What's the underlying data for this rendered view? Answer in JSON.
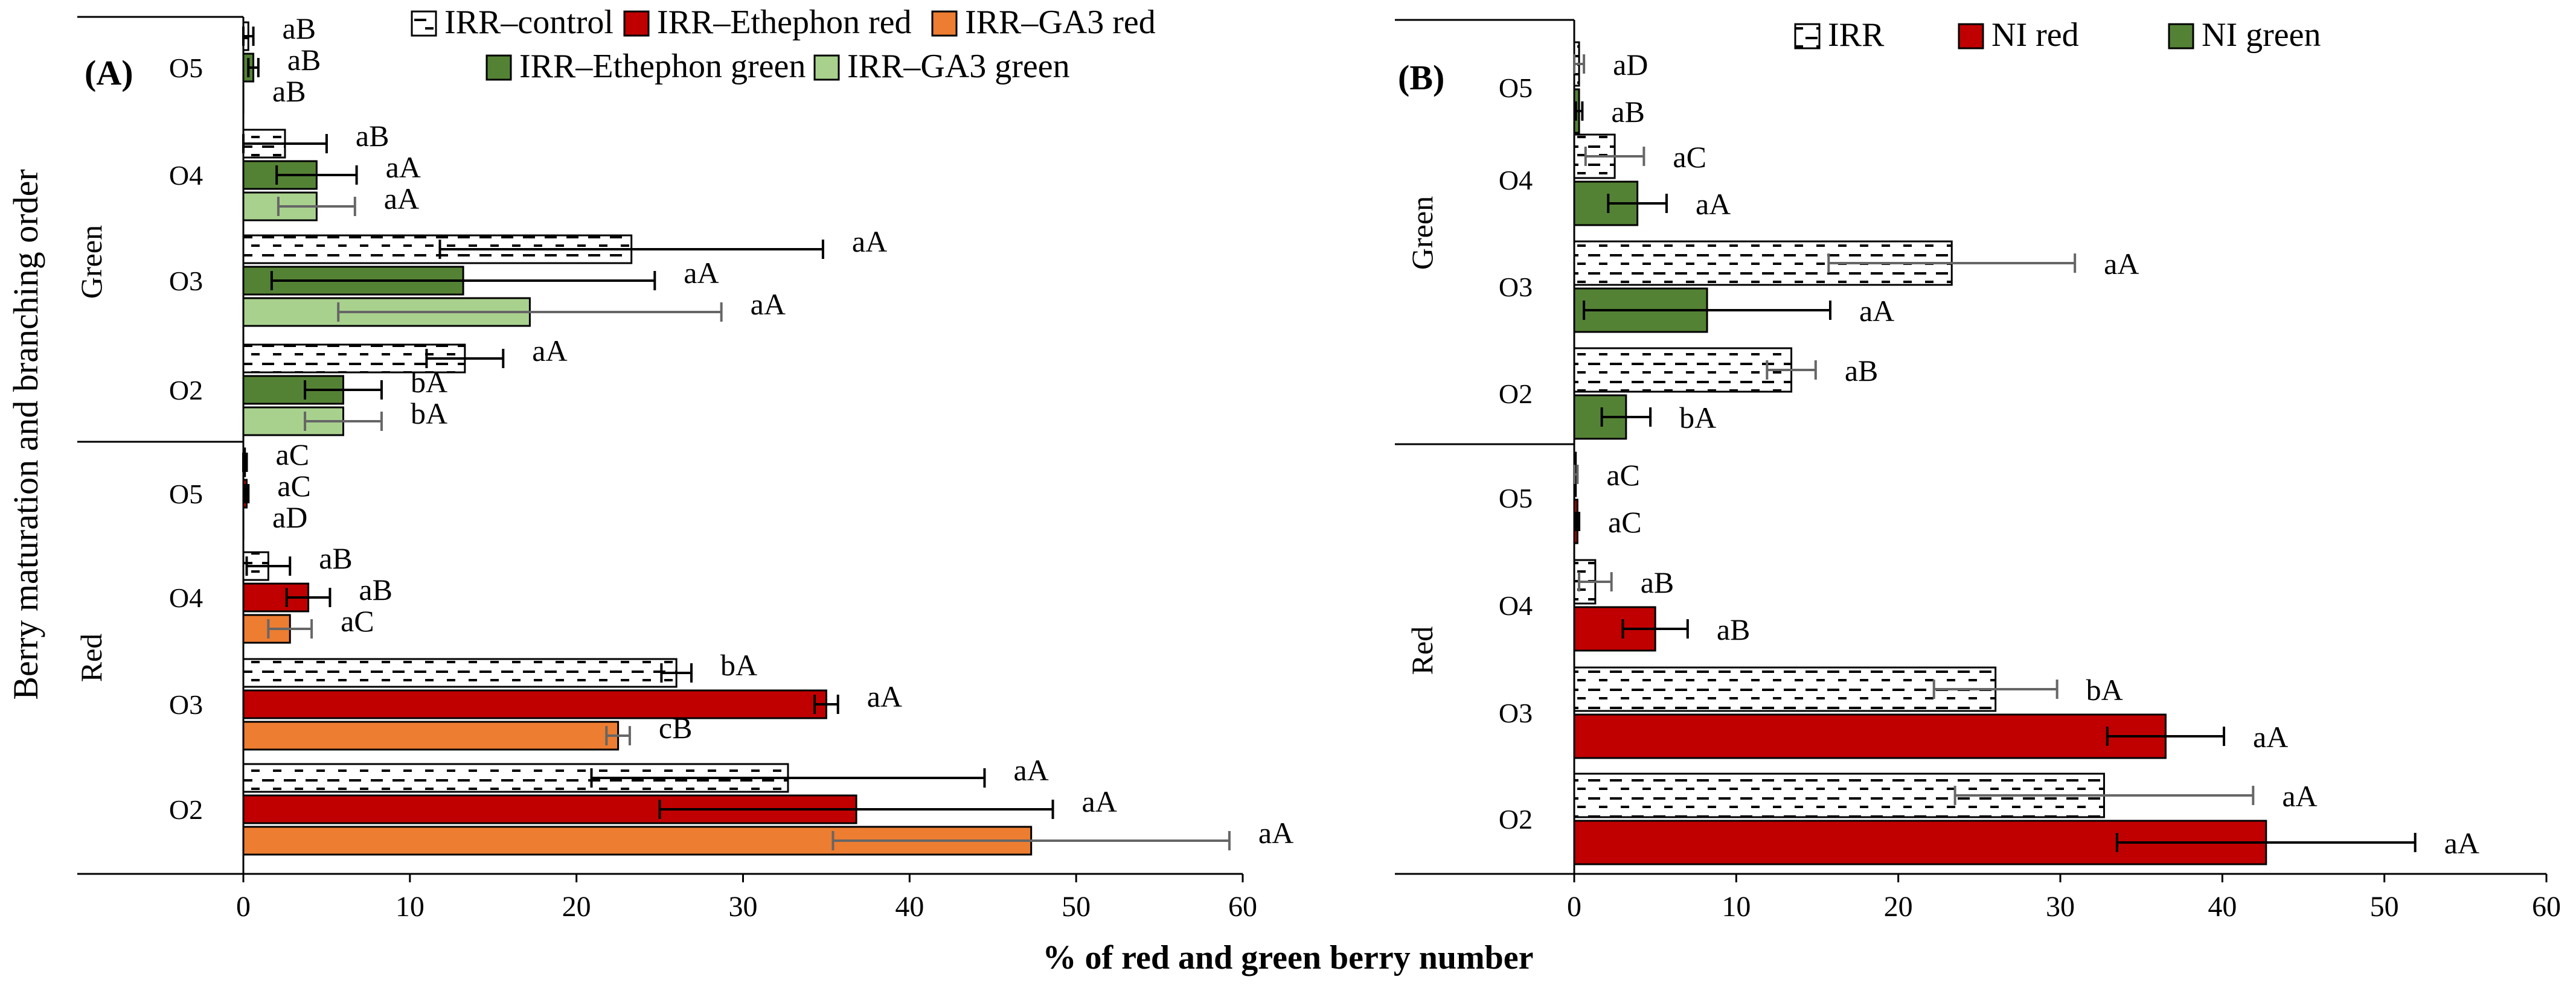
{
  "figure": {
    "ylabel": "Berry maturation and branching order",
    "xlabel": "% of red and green  berry number"
  },
  "colors": {
    "irr_fill": "#ffffff",
    "red": "#c00000",
    "orange": "#ed7d31",
    "dark_green": "#548235",
    "light_green": "#a9d18e",
    "black": "#000000",
    "error_grey": "#666666"
  },
  "chart_data": [
    {
      "type": "bar",
      "orientation": "horizontal",
      "panel_label": "(A)",
      "xlim": [
        0,
        60
      ],
      "xticks": [
        0,
        10,
        20,
        30,
        40,
        50,
        60
      ],
      "groups": [
        {
          "name": "Green",
          "orders": [
            "O5",
            "O4",
            "O3",
            "O2"
          ]
        },
        {
          "name": "Red",
          "orders": [
            "O5",
            "O4",
            "O3",
            "O2"
          ]
        }
      ],
      "series": [
        {
          "name": "IRR–control",
          "legend": "IRR–control",
          "style": "hatched",
          "color": "#ffffff",
          "group": "Green",
          "values": {
            "O5": 0.3,
            "O4": 2.5,
            "O3": 23.3,
            "O2": 13.3
          },
          "errors": {
            "O5": 0.3,
            "O4": 2.5,
            "O3": 11.5,
            "O2": 2.3
          },
          "letters": {
            "O5": "aB",
            "O4": "aB",
            "O3": "aA",
            "O2": "aA"
          }
        },
        {
          "name": "IRR–Ethephon green",
          "legend": "IRR–Ethephon green",
          "style": "solid",
          "color": "#548235",
          "group": "Green",
          "values": {
            "O5": 0.6,
            "O4": 4.4,
            "O3": 13.2,
            "O2": 6.0
          },
          "errors": {
            "O5": 0.3,
            "O4": 2.4,
            "O3": 11.5,
            "O2": 2.3
          },
          "letters": {
            "O5": "aB",
            "O4": "aA",
            "O3": "aA",
            "O2": "bA"
          }
        },
        {
          "name": "IRR–GA3 green",
          "legend": "IRR–GA3 green",
          "style": "solid",
          "color": "#a9d18e",
          "group": "Green",
          "values": {
            "O5": 0.0,
            "O4": 4.4,
            "O3": 17.2,
            "O2": 6.0
          },
          "errors": {
            "O5": 0.0,
            "O4": 2.3,
            "O3": 11.5,
            "O2": 2.3
          },
          "letters": {
            "O5": "aB",
            "O4": "aA",
            "O3": "aA",
            "O2": "bA"
          }
        },
        {
          "name": "IRR–control",
          "legend": null,
          "style": "hatched",
          "color": "#ffffff",
          "group": "Red",
          "values": {
            "O5": 0.1,
            "O4": 1.5,
            "O3": 26.0,
            "O2": 32.7
          },
          "errors": {
            "O5": 0.1,
            "O4": 1.3,
            "O3": 0.9,
            "O2": 11.8
          },
          "letters": {
            "O5": "aC",
            "O4": "aB",
            "O3": "bA",
            "O2": "aA"
          }
        },
        {
          "name": "IRR–Ethephon red",
          "legend": "IRR–Ethephon red",
          "style": "solid",
          "color": "#c00000",
          "group": "Red",
          "values": {
            "O5": 0.2,
            "O4": 3.9,
            "O3": 35.0,
            "O2": 36.8
          },
          "errors": {
            "O5": 0.1,
            "O4": 1.3,
            "O3": 0.7,
            "O2": 11.8
          },
          "letters": {
            "O5": "aC",
            "O4": "aB",
            "O3": "aA",
            "O2": "aA"
          }
        },
        {
          "name": "IRR–GA3 red",
          "legend": "IRR–GA3 red",
          "style": "solid",
          "color": "#ed7d31",
          "group": "Red",
          "values": {
            "O5": 0.0,
            "O4": 2.8,
            "O3": 22.5,
            "O2": 47.3
          },
          "errors": {
            "O5": 0.0,
            "O4": 1.3,
            "O3": 0.7,
            "O2": 11.9
          },
          "letters": {
            "O5": "aD",
            "O4": "aC",
            "O3": "cB",
            "O2": "aA"
          }
        }
      ]
    },
    {
      "type": "bar",
      "orientation": "horizontal",
      "panel_label": "(B)",
      "xlim": [
        0,
        60
      ],
      "xticks": [
        0,
        10,
        20,
        30,
        40,
        50,
        60
      ],
      "groups": [
        {
          "name": "Green",
          "orders": [
            "O5",
            "O4",
            "O3",
            "O2"
          ]
        },
        {
          "name": "Red",
          "orders": [
            "O5",
            "O4",
            "O3",
            "O2"
          ]
        }
      ],
      "series": [
        {
          "name": "IRR",
          "legend": "IRR",
          "style": "hatched",
          "color": "#ffffff",
          "group": "Green",
          "values": {
            "O5": 0.3,
            "O4": 2.5,
            "O3": 23.3,
            "O2": 13.4
          },
          "errors": {
            "O5": 0.3,
            "O4": 1.8,
            "O3": 7.6,
            "O2": 1.5
          },
          "letters": {
            "O5": "aD",
            "O4": "aC",
            "O3": "aA",
            "O2": "aB"
          }
        },
        {
          "name": "NI green",
          "legend": "NI green",
          "style": "solid",
          "color": "#548235",
          "group": "Green",
          "values": {
            "O5": 0.3,
            "O4": 3.9,
            "O3": 8.2,
            "O2": 3.2
          },
          "errors": {
            "O5": 0.2,
            "O4": 1.8,
            "O3": 7.6,
            "O2": 1.5
          },
          "letters": {
            "O5": "aB",
            "O4": "aA",
            "O3": "aA",
            "O2": "bA"
          }
        },
        {
          "name": "IRR",
          "legend": null,
          "style": "hatched",
          "color": "#ffffff",
          "group": "Red",
          "values": {
            "O5": 0.1,
            "O4": 1.3,
            "O3": 26.0,
            "O2": 32.7
          },
          "errors": {
            "O5": 0.1,
            "O4": 1.0,
            "O3": 3.8,
            "O2": 9.2
          },
          "letters": {
            "O5": "aC",
            "O4": "aB",
            "O3": "bA",
            "O2": "aA"
          }
        },
        {
          "name": "NI red",
          "legend": "NI red",
          "style": "solid",
          "color": "#c00000",
          "group": "Red",
          "values": {
            "O5": 0.2,
            "O4": 5.0,
            "O3": 36.5,
            "O2": 42.7
          },
          "errors": {
            "O5": 0.1,
            "O4": 2.0,
            "O3": 3.6,
            "O2": 9.2
          },
          "letters": {
            "O5": "aC",
            "O4": "aB",
            "O3": "aA",
            "O2": "aA"
          }
        }
      ]
    }
  ]
}
